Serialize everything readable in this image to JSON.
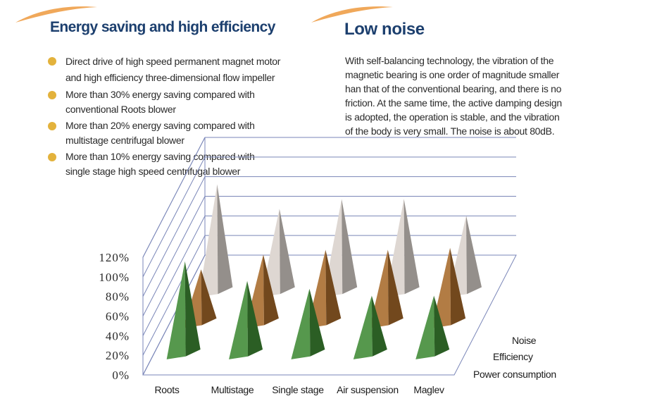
{
  "left_section": {
    "title": "Energy saving and high efficiency",
    "bullets": [
      [
        "Direct drive of high speed permanent magnet motor",
        "and high efficiency three-dimensional flow impeller"
      ],
      [
        "More than 30% energy saving compared with",
        "conventional Roots blower"
      ],
      [
        "More than 20% energy saving compared with",
        "multistage centrifugal blower"
      ],
      [
        "More than 10% energy saving compared with",
        "single stage high speed centrifugal blower"
      ]
    ]
  },
  "right_section": {
    "title": "Low noise",
    "lines": [
      "With self-balancing technology, the vibration of the",
      "magnetic bearing is one order of magnitude smaller",
      "han that of the conventional bearing, and there is no",
      "friction. At the same time, the active damping design",
      "is adopted, the operation is stable, and the vibration",
      "of the body is very small. The noise is about 80dB."
    ]
  },
  "colors": {
    "heading": "#1c3f6e",
    "bullet": "#e3b23c",
    "swoosh": "#f0a85a",
    "power_consumption": "#3f8a35",
    "efficiency": "#a86a2a",
    "noise": "#d9d2cc",
    "grid": "#7a86b8"
  },
  "chart_data": {
    "type": "bar",
    "style": "3d-pyramid",
    "categories": [
      "Roots",
      "Multistage",
      "Single stage",
      "Air suspension",
      "Maglev"
    ],
    "series": [
      {
        "name": "Power consumption",
        "values": [
          100,
          80,
          72,
          65,
          65
        ]
      },
      {
        "name": "Efficiency",
        "values": [
          60,
          75,
          80,
          80,
          82
        ]
      },
      {
        "name": "Noise",
        "values": [
          115,
          90,
          100,
          100,
          83
        ]
      }
    ],
    "y_ticks": [
      "0%",
      "20%",
      "40%",
      "60%",
      "80%",
      "100%",
      "120%"
    ],
    "ylim": [
      0,
      120
    ],
    "grid": true,
    "legend": "series labels along depth axis, right side"
  }
}
